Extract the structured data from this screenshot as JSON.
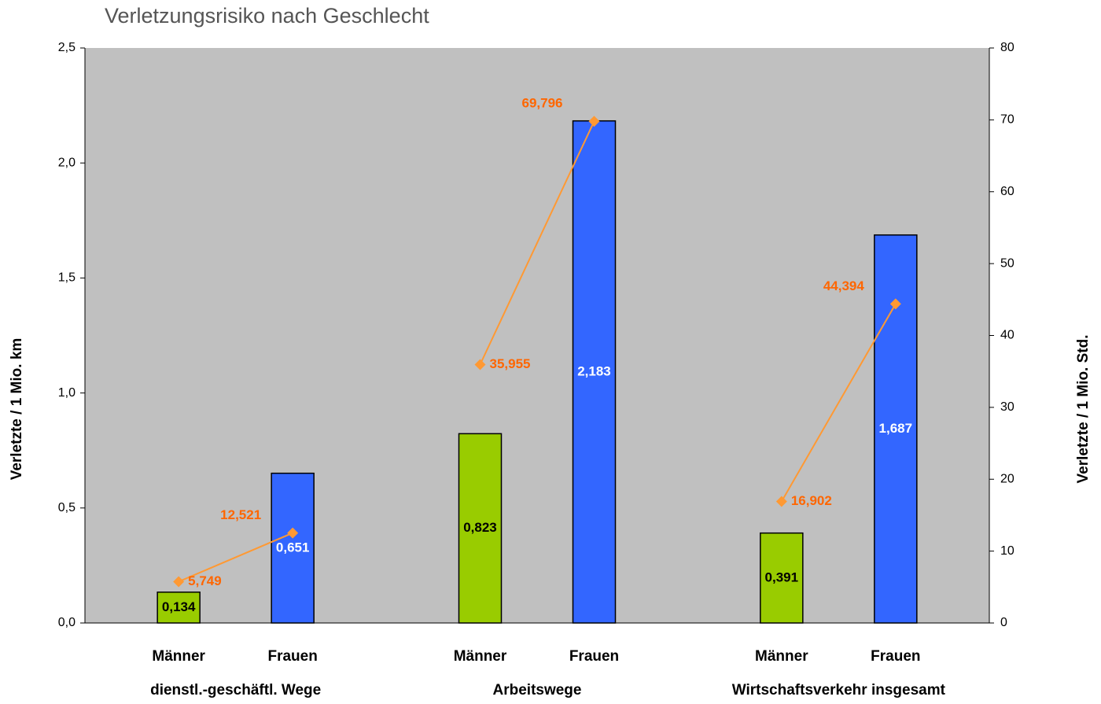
{
  "chart_data": {
    "type": "bar",
    "title": "Verletzungsrisiko nach Geschlecht",
    "ylabel": "Verletzte / 1 Mio. km",
    "y2label": "Verletzte / 1 Mio. Std.",
    "categories": [
      "Männer",
      "Frauen",
      "Männer",
      "Frauen",
      "Männer",
      "Frauen"
    ],
    "groups": [
      "dienstl.-geschäftl.  Wege",
      "Arbeitswege",
      "Wirtschaftsverkehr insgesamt"
    ],
    "series": [
      {
        "type": "bar",
        "colors": [
          "#99cc00",
          "#3366ff",
          "#99cc00",
          "#3366ff",
          "#99cc00",
          "#3366ff"
        ],
        "values": [
          0.134,
          0.651,
          0.823,
          2.183,
          0.391,
          1.687
        ],
        "value_labels": [
          "0,134",
          "0,651",
          "0,823",
          "2,183",
          "0,391",
          "1,687"
        ]
      },
      {
        "type": "line",
        "axis": "y2",
        "color": "#ff9933",
        "values": [
          5.749,
          12.521,
          35.955,
          69.796,
          16.902,
          44.394
        ],
        "value_labels": [
          "5,749",
          "12,521",
          "35,955",
          "69,796",
          "16,902",
          "44,394"
        ]
      }
    ],
    "ylim": [
      0,
      2.5
    ],
    "yticks": [
      {
        "value": 0,
        "label": "0,0"
      },
      {
        "value": 0.5,
        "label": "0,5"
      },
      {
        "value": 1,
        "label": "1,0"
      },
      {
        "value": 1.5,
        "label": "1,5"
      },
      {
        "value": 2,
        "label": "2,0"
      },
      {
        "value": 2.5,
        "label": "2,5"
      }
    ],
    "y2lim": [
      0,
      80
    ],
    "y2ticks": [
      0,
      10,
      20,
      30,
      40,
      50,
      60,
      70,
      80
    ],
    "grid": false
  }
}
